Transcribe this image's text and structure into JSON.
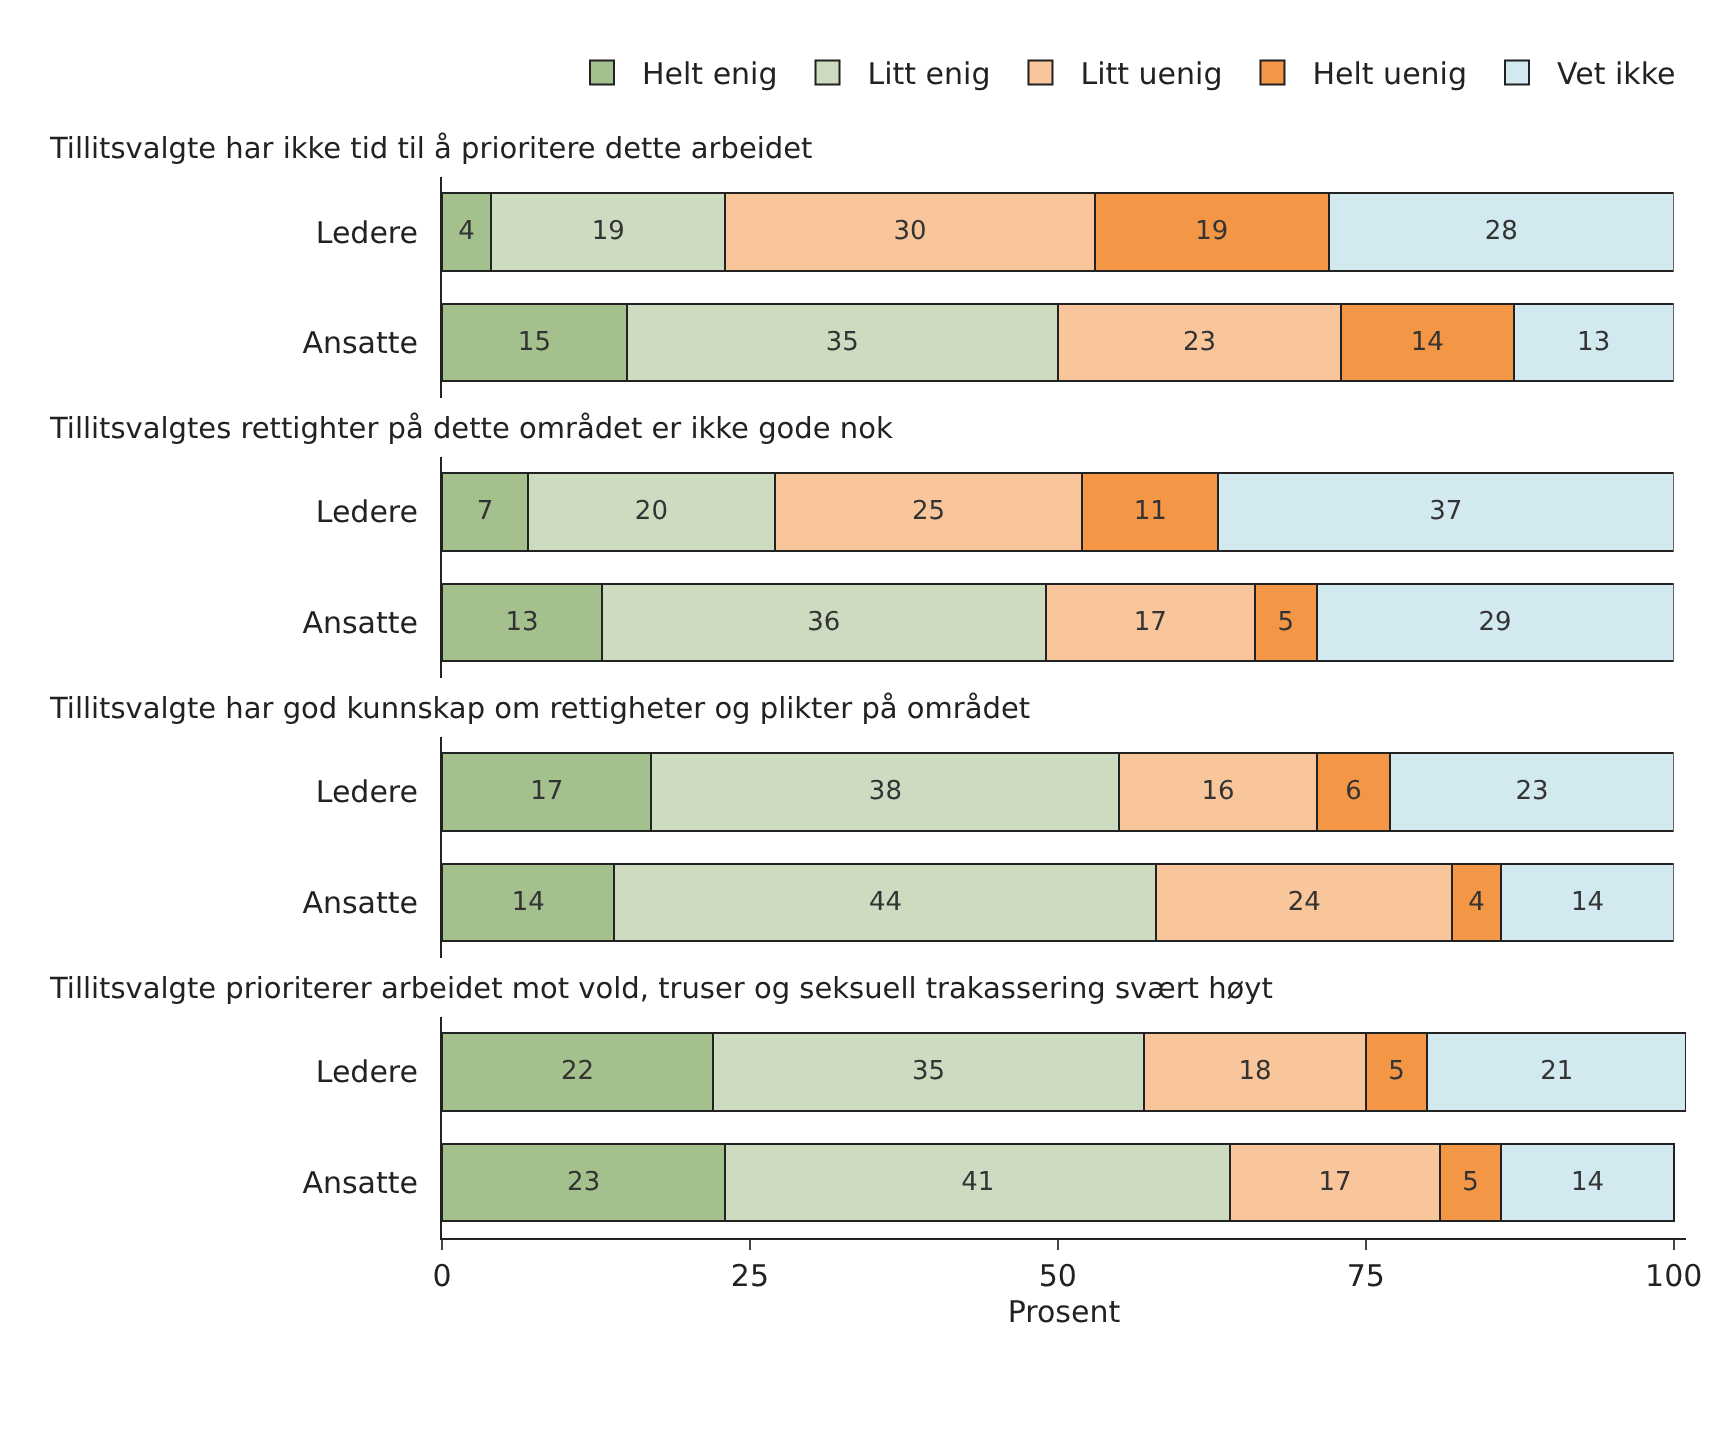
{
  "chart_data": [
    {
      "type": "bar",
      "orientation": "horizontal",
      "stacked": true,
      "data_labels": true,
      "title": "Tillitsvalgte har ikke tid til å prioritere dette arbeidet",
      "categories": [
        "Ledere",
        "Ansatte"
      ],
      "xlim": [
        0,
        100
      ],
      "xticks": [
        0,
        25,
        50,
        75,
        100
      ],
      "tick_labels": "y",
      "legend": "top right",
      "series": [
        {
          "name": "Helt enig",
          "color": "#a3c08d",
          "values": [
            4,
            15
          ]
        },
        {
          "name": "Litt enig",
          "color": "#cddcc0",
          "values": [
            19,
            35
          ]
        },
        {
          "name": "Litt uenig",
          "color": "#f9c59a",
          "values": [
            30,
            23
          ]
        },
        {
          "name": "Helt uenig",
          "color": "#f39645",
          "values": [
            19,
            14
          ]
        },
        {
          "name": "Vet ikke",
          "color": "#d3e9f0",
          "values": [
            28,
            13
          ]
        }
      ]
    },
    {
      "type": "bar",
      "orientation": "horizontal",
      "stacked": true,
      "data_labels": true,
      "title": "Tillitsvalgtes rettighter på dette området er ikke gode nok",
      "categories": [
        "Ledere",
        "Ansatte"
      ],
      "xlim": [
        0,
        100
      ],
      "xticks": [
        0,
        25,
        50,
        75,
        100
      ],
      "tick_labels": "y",
      "series": [
        {
          "name": "Helt enig",
          "color": "#a3c08d",
          "values": [
            7,
            13
          ]
        },
        {
          "name": "Litt enig",
          "color": "#cddcc0",
          "values": [
            20,
            36
          ]
        },
        {
          "name": "Litt uenig",
          "color": "#f9c59a",
          "values": [
            25,
            17
          ]
        },
        {
          "name": "Helt uenig",
          "color": "#f39645",
          "values": [
            11,
            5
          ]
        },
        {
          "name": "Vet ikke",
          "color": "#d3e9f0",
          "values": [
            37,
            29
          ]
        }
      ]
    },
    {
      "type": "bar",
      "orientation": "horizontal",
      "stacked": true,
      "data_labels": true,
      "title": "Tillitsvalgte har god kunnskap om rettigheter og plikter på området",
      "categories": [
        "Ledere",
        "Ansatte"
      ],
      "xlim": [
        0,
        100
      ],
      "xticks": [
        0,
        25,
        50,
        75,
        100
      ],
      "tick_labels": "y",
      "series": [
        {
          "name": "Helt enig",
          "color": "#a3c08d",
          "values": [
            17,
            14
          ]
        },
        {
          "name": "Litt enig",
          "color": "#cddcc0",
          "values": [
            38,
            44
          ]
        },
        {
          "name": "Litt uenig",
          "color": "#f9c59a",
          "values": [
            16,
            24
          ]
        },
        {
          "name": "Helt uenig",
          "color": "#f39645",
          "values": [
            6,
            4
          ]
        },
        {
          "name": "Vet ikke",
          "color": "#d3e9f0",
          "values": [
            23,
            14
          ]
        }
      ]
    },
    {
      "type": "bar",
      "orientation": "horizontal",
      "stacked": true,
      "data_labels": true,
      "title": "Tillitsvalgte prioriterer arbeidet mot vold, truser og seksuell trakassering svært høyt",
      "categories": [
        "Ledere",
        "Ansatte"
      ],
      "xlabel": "Prosent",
      "xlim": [
        0,
        101
      ],
      "xticks": [
        0,
        25,
        50,
        75,
        100
      ],
      "series": [
        {
          "name": "Helt enig",
          "color": "#a3c08d",
          "values": [
            22,
            23
          ]
        },
        {
          "name": "Litt enig",
          "color": "#cddcc0",
          "values": [
            35,
            41
          ]
        },
        {
          "name": "Litt uenig",
          "color": "#f9c59a",
          "values": [
            18,
            17
          ]
        },
        {
          "name": "Helt uenig",
          "color": "#f39645",
          "values": [
            5,
            5
          ]
        },
        {
          "name": "Vet ikke",
          "color": "#d3e9f0",
          "values": [
            21,
            14
          ]
        }
      ]
    }
  ]
}
